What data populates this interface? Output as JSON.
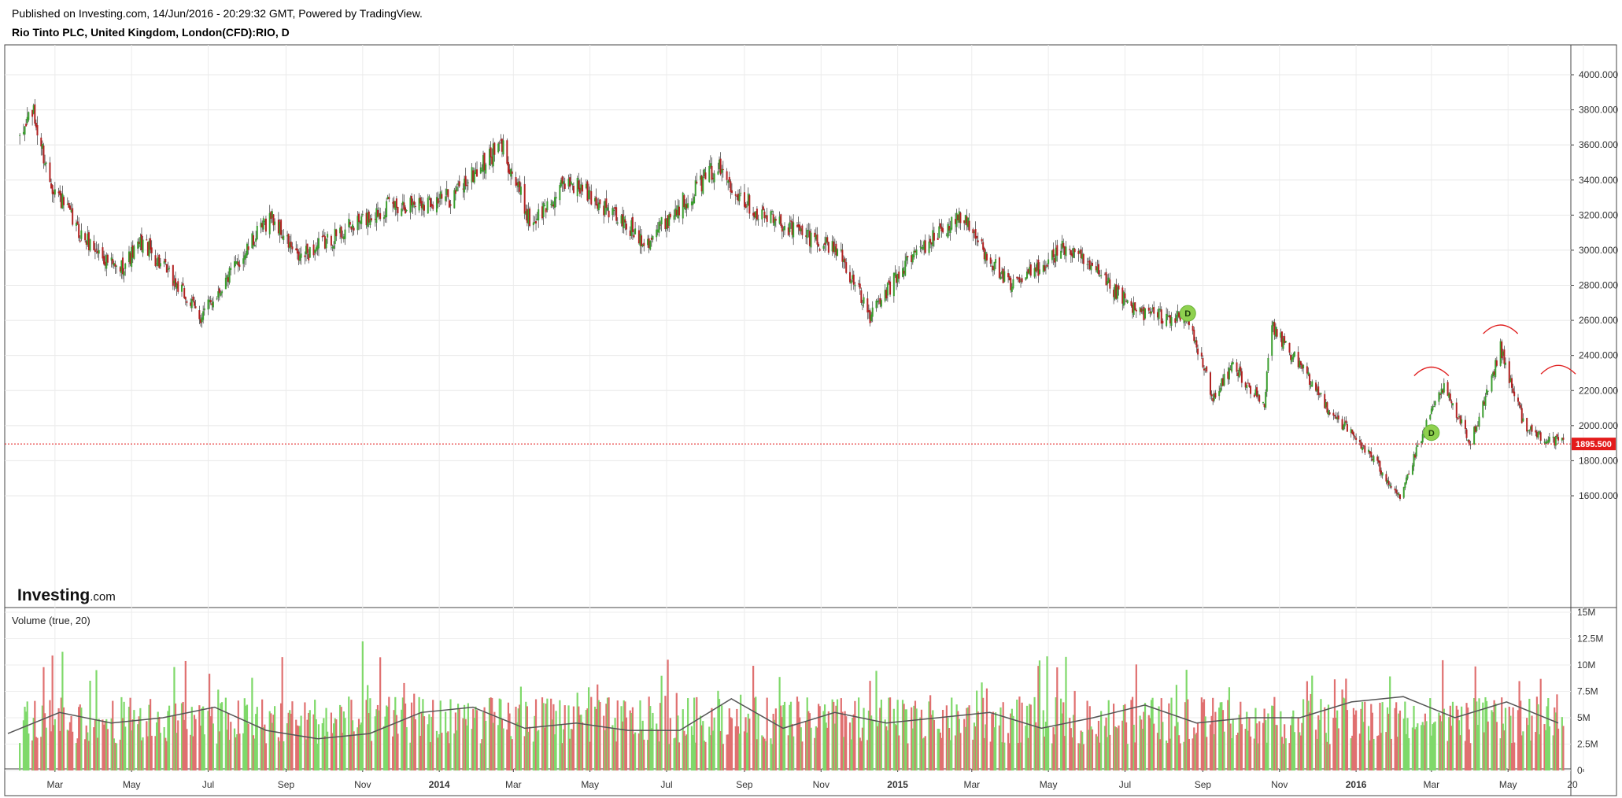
{
  "header": {
    "published": "Published on Investing.com, 14/Jun/2016 - 20:29:32 GMT, Powered by TradingView.",
    "symbol": "Rio Tinto PLC, United Kingdom, London(CFD):RIO, D"
  },
  "brand": {
    "logo_text": "Investing",
    "logo_suffix": ".com"
  },
  "volume_label": "Volume (true, 20)",
  "colors": {
    "up": "#3a9e2e",
    "down": "#b22222",
    "vol_up": "#7fd96a",
    "vol_down": "#e07070",
    "last_price": "#e31b1b",
    "ma": "#555555",
    "marker": "#8fd14f"
  },
  "chart_data": [
    {
      "type": "candlestick",
      "title": "Rio Tinto PLC, United Kingdom, London(CFD):RIO, D",
      "xlabel": "",
      "ylabel": "",
      "ylim": [
        1500,
        4150
      ],
      "y_ticks": [
        "4000.000",
        "3800.000",
        "3600.000",
        "3400.000",
        "3200.000",
        "3000.000",
        "2800.000",
        "2600.000",
        "2400.000",
        "2200.000",
        "2000.000",
        "1800.000",
        "1600.000"
      ],
      "x_ticks": [
        "Mar",
        "May",
        "Jul",
        "Sep",
        "Nov",
        "2014",
        "Mar",
        "May",
        "Jul",
        "Sep",
        "Nov",
        "2015",
        "Mar",
        "May",
        "Jul",
        "Sep",
        "Nov",
        "2016",
        "Mar",
        "May",
        "20"
      ],
      "last_price": "1895.500",
      "approx_close_path": [
        {
          "x": "2013-02-01",
          "close": 3600
        },
        {
          "x": "2013-02-10",
          "close": 3820
        },
        {
          "x": "2013-02-25",
          "close": 3400
        },
        {
          "x": "2013-03-20",
          "close": 3100
        },
        {
          "x": "2013-04-20",
          "close": 2880
        },
        {
          "x": "2013-05-10",
          "close": 3050
        },
        {
          "x": "2013-06-25",
          "close": 2620
        },
        {
          "x": "2013-08-20",
          "close": 3200
        },
        {
          "x": "2013-09-10",
          "close": 2950
        },
        {
          "x": "2013-10-15",
          "close": 3100
        },
        {
          "x": "2013-11-20",
          "close": 3250
        },
        {
          "x": "2014-01-10",
          "close": 3300
        },
        {
          "x": "2014-02-20",
          "close": 3600
        },
        {
          "x": "2014-03-15",
          "close": 3150
        },
        {
          "x": "2014-04-15",
          "close": 3400
        },
        {
          "x": "2014-06-15",
          "close": 3050
        },
        {
          "x": "2014-08-10",
          "close": 3480
        },
        {
          "x": "2014-09-10",
          "close": 3220
        },
        {
          "x": "2014-11-15",
          "close": 3000
        },
        {
          "x": "2014-12-10",
          "close": 2620
        },
        {
          "x": "2015-01-10",
          "close": 2950
        },
        {
          "x": "2015-02-20",
          "close": 3200
        },
        {
          "x": "2015-04-01",
          "close": 2780
        },
        {
          "x": "2015-05-15",
          "close": 3020
        },
        {
          "x": "2015-07-10",
          "close": 2650
        },
        {
          "x": "2015-08-20",
          "close": 2600
        },
        {
          "x": "2015-09-10",
          "close": 2150
        },
        {
          "x": "2015-09-25",
          "close": 2350
        },
        {
          "x": "2015-10-20",
          "close": 2100
        },
        {
          "x": "2015-10-25",
          "close": 2580
        },
        {
          "x": "2015-12-10",
          "close": 2100
        },
        {
          "x": "2016-01-10",
          "close": 1850
        },
        {
          "x": "2016-02-05",
          "close": 1600
        },
        {
          "x": "2016-02-25",
          "close": 1980
        },
        {
          "x": "2016-03-10",
          "close": 2220
        },
        {
          "x": "2016-04-01",
          "close": 1900
        },
        {
          "x": "2016-04-25",
          "close": 2440
        },
        {
          "x": "2016-05-15",
          "close": 1980
        },
        {
          "x": "2016-06-14",
          "close": 1895
        }
      ],
      "annotations": [
        {
          "type": "marker",
          "label": "D",
          "x": "2015-08-20",
          "y": 2640
        },
        {
          "type": "marker",
          "label": "D",
          "x": "2016-03-01",
          "y": 1960
        },
        {
          "type": "arc",
          "x": "2016-03-01",
          "y": 2320
        },
        {
          "type": "arc",
          "x": "2016-04-25",
          "y": 2560
        },
        {
          "type": "arc",
          "x": "2016-06-10",
          "y": 2330
        }
      ],
      "grid": true,
      "legend": "none"
    },
    {
      "type": "bar",
      "title": "Volume (true, 20)",
      "ylim": [
        0,
        15
      ],
      "y_ticks": [
        "15M",
        "12.5M",
        "10M",
        "7.5M",
        "5M",
        "2.5M",
        "0"
      ],
      "approx_volume_range_M": [
        1.5,
        13.5
      ],
      "moving_average_length": 20,
      "approx_ma_path_M": [
        3.5,
        5.5,
        4.5,
        5.0,
        6.0,
        3.8,
        3.0,
        3.5,
        5.5,
        6.0,
        4.0,
        4.5,
        3.8,
        3.8,
        6.8,
        4.0,
        5.5,
        4.5,
        5.0,
        5.5,
        4.0,
        5.0,
        6.2,
        4.5,
        5.0,
        5.0,
        6.5,
        7.0,
        5.0,
        6.5,
        4.5
      ]
    }
  ]
}
